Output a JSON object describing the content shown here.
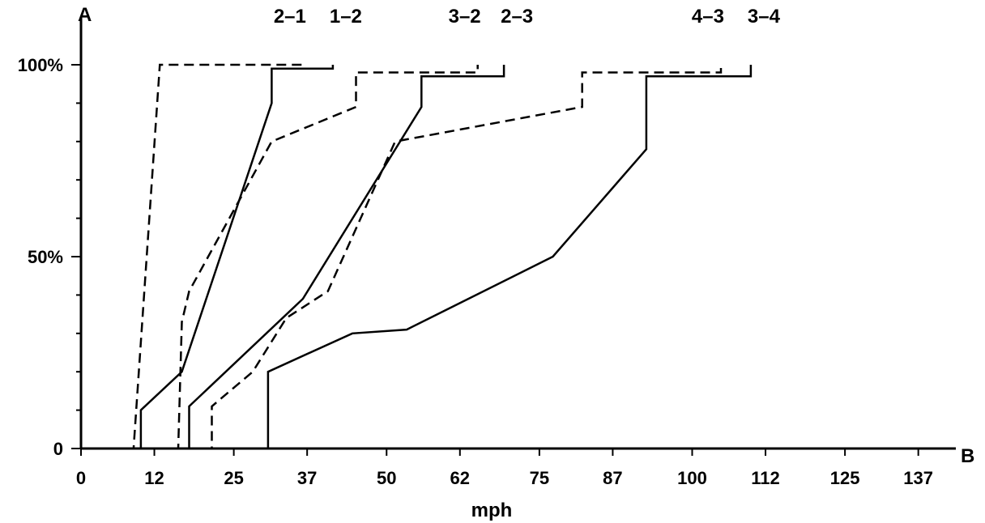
{
  "chart_data": {
    "type": "line",
    "title": "",
    "xlabel": "mph",
    "ylabel": "",
    "y_axis_letter": "A",
    "x_axis_letter": "B",
    "xlim": [
      0,
      143
    ],
    "ylim": [
      0,
      100
    ],
    "x_ticks": [
      0,
      12,
      25,
      37,
      50,
      62,
      75,
      87,
      100,
      112,
      125,
      137
    ],
    "y_ticks": [
      {
        "value": 0,
        "label": "0"
      },
      {
        "value": 50,
        "label": "50%"
      },
      {
        "value": 100,
        "label": "100%"
      }
    ],
    "grid": false,
    "legend": "none",
    "series": [
      {
        "style": "solid",
        "points": [
          [
            0,
            0
          ],
          [
            9.8,
            0
          ],
          [
            9.8,
            10
          ],
          [
            16.5,
            20
          ],
          [
            31.2,
            90
          ],
          [
            31.2,
            99
          ],
          [
            41.2,
            99
          ],
          [
            41.2,
            100
          ]
        ]
      },
      {
        "style": "dashed",
        "points": [
          [
            0,
            0
          ],
          [
            8.6,
            0
          ],
          [
            12.9,
            100
          ],
          [
            36.3,
            100
          ]
        ]
      },
      {
        "style": "solid",
        "points": [
          [
            0,
            0
          ],
          [
            17.7,
            0
          ],
          [
            17.7,
            11
          ],
          [
            36.3,
            39
          ],
          [
            55.7,
            89
          ],
          [
            55.7,
            97
          ],
          [
            69.2,
            97
          ],
          [
            69.2,
            100
          ]
        ]
      },
      {
        "style": "dashed",
        "points": [
          [
            0,
            0
          ],
          [
            15.9,
            0
          ],
          [
            16.5,
            33
          ],
          [
            17.7,
            41
          ],
          [
            31.2,
            80
          ],
          [
            45.0,
            89
          ],
          [
            45.0,
            98
          ],
          [
            64.9,
            98
          ],
          [
            64.9,
            100
          ]
        ]
      },
      {
        "style": "dashed",
        "points": [
          [
            0,
            0
          ],
          [
            21.4,
            0
          ],
          [
            21.4,
            11
          ],
          [
            28.1,
            20
          ],
          [
            33.6,
            34
          ],
          [
            40.4,
            41
          ],
          [
            51.4,
            80
          ],
          [
            82.0,
            89
          ],
          [
            82.0,
            98
          ],
          [
            104.7,
            98
          ],
          [
            104.7,
            100
          ]
        ]
      },
      {
        "style": "solid",
        "points": [
          [
            0,
            0
          ],
          [
            30.6,
            0
          ],
          [
            30.6,
            20
          ],
          [
            44.4,
            30
          ],
          [
            53.3,
            31
          ],
          [
            77.2,
            50
          ],
          [
            92.5,
            78
          ],
          [
            92.5,
            97
          ],
          [
            109.6,
            97
          ],
          [
            109.6,
            100
          ]
        ]
      }
    ],
    "gear_labels": [
      {
        "text": "2–1",
        "x": 36.3
      },
      {
        "text": "1–2",
        "x": 41.2
      },
      {
        "text": "3–2",
        "x": 64.9
      },
      {
        "text": "2–3",
        "x": 69.2
      },
      {
        "text": "4–3",
        "x": 104.7
      },
      {
        "text": "3–4",
        "x": 109.6
      }
    ]
  }
}
